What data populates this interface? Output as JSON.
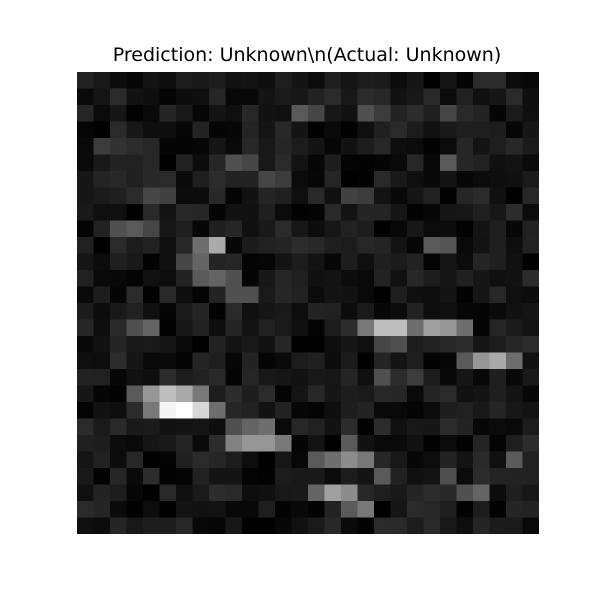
{
  "figure": {
    "title": "Prediction: Unknown\\n(Actual: Unknown)"
  },
  "image": {
    "grid": 28,
    "description": "low-resolution grayscale noisy image",
    "bright_blobs": [
      {
        "row": 22,
        "col": 6,
        "value": 255
      },
      {
        "row": 22,
        "col": 5,
        "value": 235
      },
      {
        "row": 22,
        "col": 7,
        "value": 220
      }
    ]
  }
}
